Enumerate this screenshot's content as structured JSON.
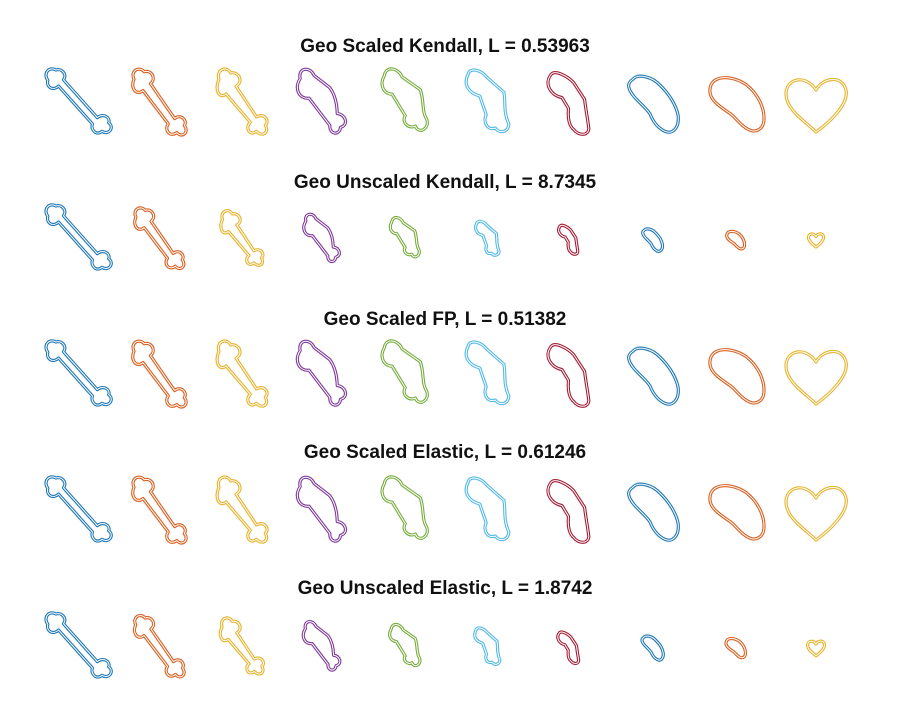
{
  "colors": [
    "#1f77b4",
    "#d95f1f",
    "#e8b22a",
    "#7e3a99",
    "#76ab3c",
    "#52b9e6",
    "#a51d36"
  ],
  "panels": [
    {
      "title": "Geo Scaled Kendall, L = 0.53963",
      "scales": [
        1,
        1,
        1,
        1,
        1,
        1,
        1,
        1,
        1,
        1
      ]
    },
    {
      "title": "Geo Unscaled Kendall, L = 8.7345",
      "scales": [
        1.0,
        0.92,
        0.84,
        0.74,
        0.64,
        0.55,
        0.47,
        0.4,
        0.33,
        0.25
      ]
    },
    {
      "title": "Geo Scaled FP, L = 0.51382",
      "scales": [
        1,
        1,
        1,
        1,
        1,
        1,
        1,
        1,
        1,
        1
      ]
    },
    {
      "title": "Geo Scaled Elastic, L = 0.61246",
      "scales": [
        1,
        1,
        1,
        1,
        1,
        1,
        1,
        1,
        1,
        1
      ]
    },
    {
      "title": "Geo Unscaled Elastic, L = 1.8742",
      "scales": [
        1.0,
        0.93,
        0.86,
        0.76,
        0.67,
        0.59,
        0.51,
        0.43,
        0.36,
        0.28
      ]
    }
  ]
}
